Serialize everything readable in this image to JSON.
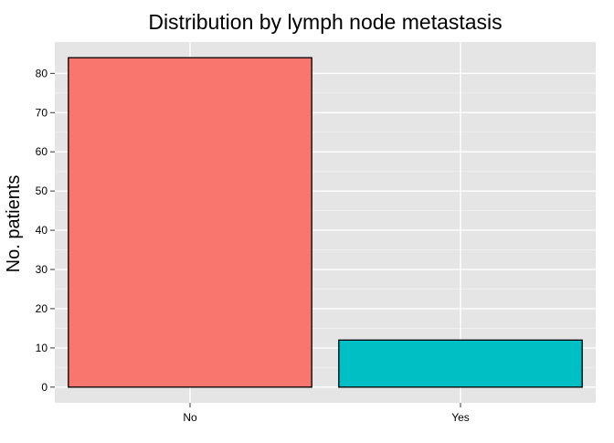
{
  "chart_data": {
    "type": "bar",
    "title": "Distribution by lymph node metastasis",
    "xlabel": "",
    "ylabel": "No. patients",
    "categories": [
      "No",
      "Yes"
    ],
    "values": [
      84,
      12
    ],
    "ylim": [
      -4,
      88
    ],
    "yticks": [
      0,
      10,
      20,
      30,
      40,
      50,
      60,
      70,
      80
    ],
    "colors": [
      "#F8766D",
      "#00BFC4"
    ],
    "panel_background": "#E5E5E5",
    "grid": true,
    "legend": "none"
  }
}
